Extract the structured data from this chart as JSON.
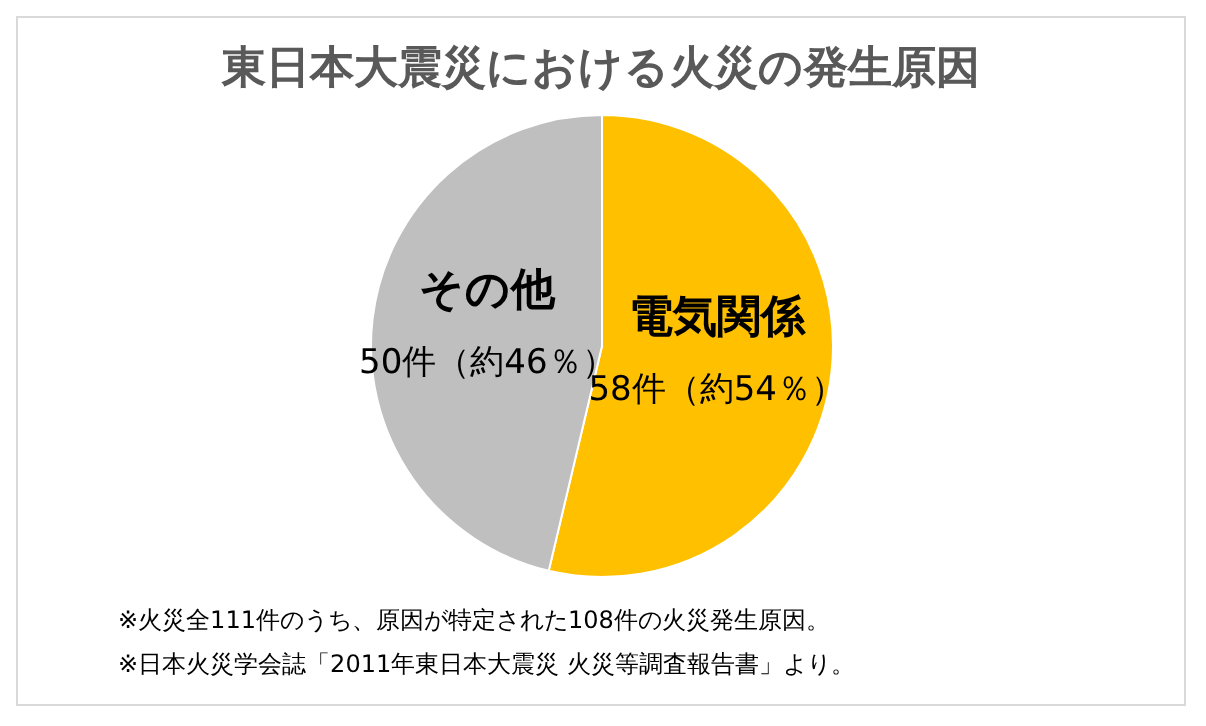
{
  "chart_data": {
    "type": "pie",
    "title": "東日本大震災における火災の発生原因",
    "categories": [
      "電気関係",
      "その他"
    ],
    "values": [
      58,
      50
    ],
    "value_labels": [
      "58件（約54％）",
      "50件（約46％）"
    ],
    "colors": [
      "#ffc000",
      "#bfbfbf"
    ],
    "annotations": [
      "※火災全111件のうち、原因が特定された108件の火災発生原因。",
      "※日本火災学会誌「2011年東日本大震災 火災等調査報告書」より。"
    ]
  }
}
